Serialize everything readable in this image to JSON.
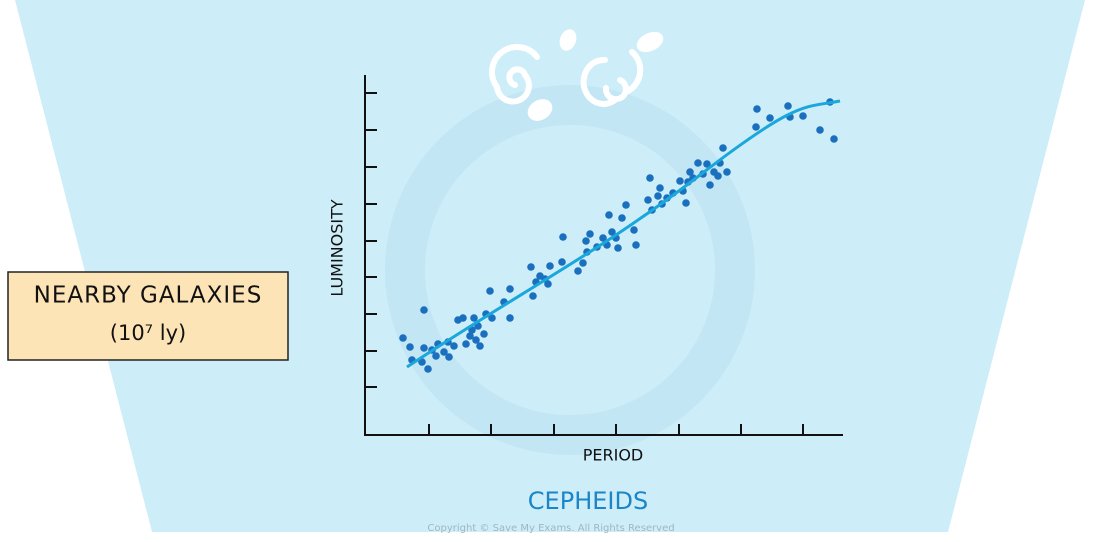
{
  "label_box": {
    "line1": "NEARBY GALAXIES",
    "line2": "(10⁷ ly)"
  },
  "axes": {
    "y_label": "LUMINOSITY",
    "x_label": "PERIOD"
  },
  "caption": "CEPHEIDS",
  "copyright": "Copyright © Save My Exams. All Rights Reserved"
}
